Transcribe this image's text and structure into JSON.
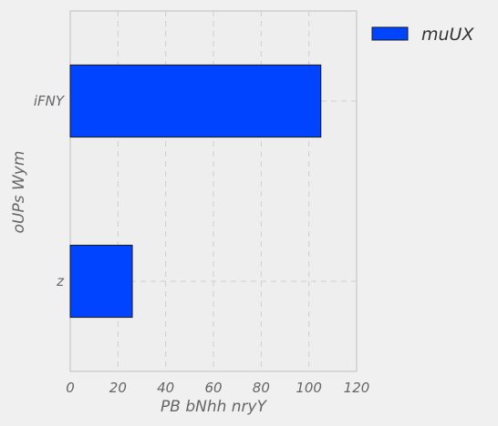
{
  "chart_data": {
    "type": "bar",
    "orientation": "horizontal",
    "categories": [
      "iFNY",
      "z"
    ],
    "series": [
      {
        "name": "muUX",
        "values": [
          105,
          26
        ],
        "color": "#0044ff"
      }
    ],
    "xlabel": "PB bNhh  nryY",
    "ylabel": "oUPs Wym",
    "xlim": [
      0,
      120
    ],
    "xticks": [
      0,
      20,
      40,
      60,
      80,
      100,
      120
    ],
    "grid": true,
    "legend": "outside top-right",
    "colors": {
      "background": "#f0f0f0",
      "plot_background": "#eeeeee",
      "grid": "#cfcfcf",
      "bar_edge": "#1a1a1a"
    }
  }
}
